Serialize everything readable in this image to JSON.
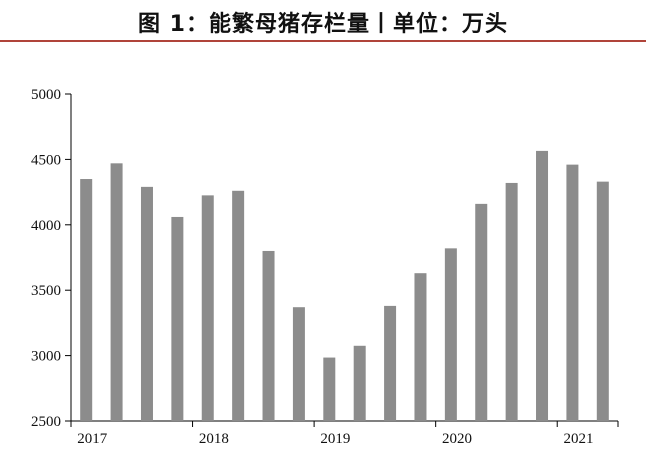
{
  "title": "图 1：能繁母猪存栏量丨单位：万头",
  "colors": {
    "bar": "#8c8c8c",
    "axis": "#000000",
    "rule": "#b0443a"
  },
  "chart_data": {
    "type": "bar",
    "title": "图 1：能繁母猪存栏量丨单位：万头",
    "ylabel": "",
    "xlabel": "",
    "ylim": [
      2500,
      5000
    ],
    "yticks": [
      2500,
      3000,
      3500,
      4000,
      4500,
      5000
    ],
    "xtick_labels": [
      "2017",
      "2018",
      "2019",
      "2020",
      "2021"
    ],
    "grid": false,
    "values": [
      4350,
      4470,
      4290,
      4060,
      4225,
      4260,
      3800,
      3370,
      2985,
      3075,
      3380,
      3630,
      3820,
      4160,
      4320,
      4565,
      4460,
      4330
    ]
  }
}
